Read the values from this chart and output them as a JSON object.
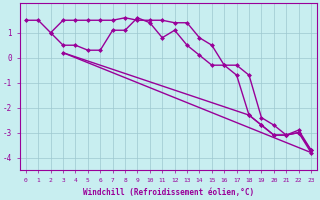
{
  "line1_x": [
    0,
    1,
    2,
    3,
    4,
    5,
    6,
    7,
    8,
    9,
    10,
    11,
    12,
    13,
    14,
    15,
    16,
    17,
    18,
    19,
    20,
    21,
    22,
    23
  ],
  "line1_y": [
    1.5,
    1.5,
    1.0,
    1.5,
    1.5,
    1.5,
    1.5,
    1.5,
    1.6,
    1.5,
    1.5,
    1.5,
    1.4,
    1.4,
    0.8,
    0.5,
    -0.3,
    -0.3,
    -0.7,
    -2.4,
    -2.7,
    -3.1,
    -3.0,
    -3.7
  ],
  "line2_x": [
    2,
    3,
    4,
    5,
    6,
    7,
    8,
    9,
    10,
    11,
    12,
    13,
    14,
    15,
    16,
    17,
    18,
    19,
    20,
    21,
    22,
    23
  ],
  "line2_y": [
    1.0,
    0.5,
    0.5,
    0.3,
    0.3,
    1.1,
    1.1,
    1.6,
    1.4,
    0.8,
    1.1,
    0.5,
    0.1,
    -0.3,
    -0.3,
    -0.7,
    -2.3,
    -2.7,
    -3.1,
    -3.1,
    -2.9,
    -3.7
  ],
  "line3_x": [
    3,
    23
  ],
  "line3_y": [
    0.2,
    -3.8
  ],
  "line4_x": [
    3,
    18,
    19,
    20,
    21,
    22,
    23
  ],
  "line4_y": [
    0.2,
    -2.3,
    -2.7,
    -3.1,
    -3.1,
    -3.0,
    -3.8
  ],
  "line_color": "#990099",
  "bg_color": "#c8eef0",
  "grid_color": "#9dc8d0",
  "xlabel": "Windchill (Refroidissement éolien,°C)",
  "xlim": [
    -0.5,
    23.5
  ],
  "ylim": [
    -4.5,
    2.2
  ],
  "yticks": [
    1,
    0,
    -1,
    -2,
    -3,
    -4
  ],
  "xticks": [
    0,
    1,
    2,
    3,
    4,
    5,
    6,
    7,
    8,
    9,
    10,
    11,
    12,
    13,
    14,
    15,
    16,
    17,
    18,
    19,
    20,
    21,
    22,
    23
  ],
  "marker": "D",
  "markersize": 2.5,
  "linewidth": 1.0
}
